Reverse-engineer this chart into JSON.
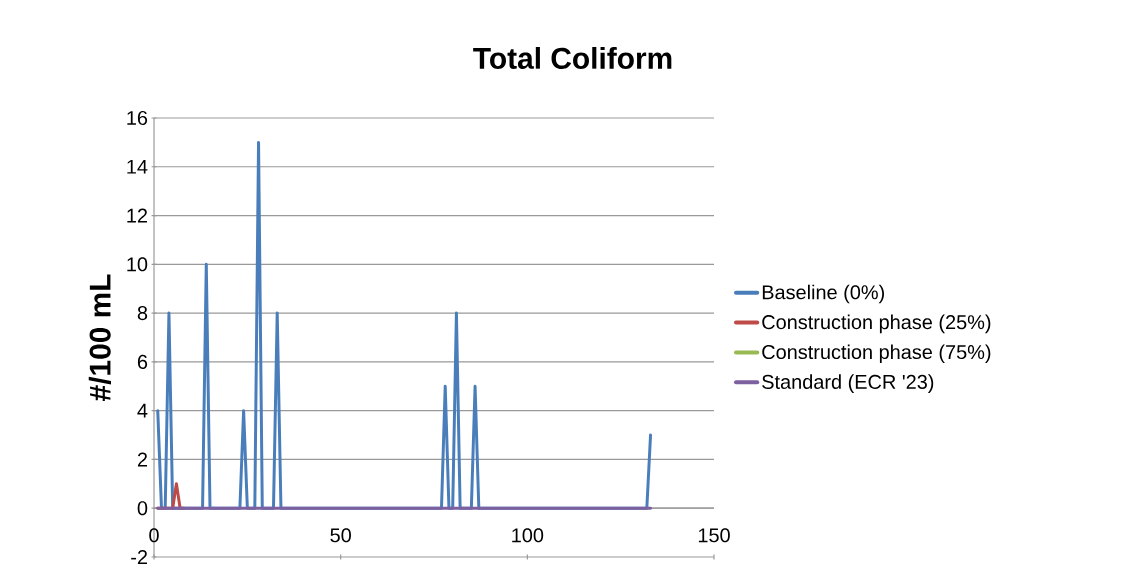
{
  "chart_data": {
    "type": "line",
    "title": "Total Coliform",
    "ylabel": "#/100 mL",
    "xlim": [
      0,
      150
    ],
    "xticks": [
      0,
      50,
      100,
      150
    ],
    "ylim": [
      -2,
      16
    ],
    "yticks": [
      -2,
      0,
      2,
      4,
      6,
      8,
      10,
      12,
      14,
      16
    ],
    "grid": "y",
    "legend": "right",
    "line_style": "solid",
    "series": [
      {
        "name": "Baseline (0%)",
        "color": "#4a7ebb",
        "x": [
          1,
          2,
          3,
          4,
          5,
          13,
          14,
          15,
          23,
          24,
          25,
          27,
          28,
          29,
          32,
          33,
          34,
          77,
          78,
          79,
          80,
          81,
          82,
          85,
          86,
          87,
          132,
          133
        ],
        "values": [
          4,
          0,
          0,
          8,
          0,
          0,
          10,
          0,
          0,
          4,
          0,
          0,
          15,
          0,
          0,
          8,
          0,
          0,
          5,
          0,
          0,
          8,
          0,
          0,
          5,
          0,
          0,
          3
        ]
      },
      {
        "name": "Construction phase (25%)",
        "color": "#be4b48",
        "x": [
          1,
          5,
          6,
          7,
          8
        ],
        "values": [
          0,
          0,
          1,
          0,
          0
        ]
      },
      {
        "name": "Construction phase (75%)",
        "color": "#98b954",
        "values": [
          null
        ]
      },
      {
        "name": "Standard (ECR '23)",
        "color": "#7d60a0",
        "x": [
          1,
          133
        ],
        "values": [
          0,
          0
        ]
      }
    ]
  }
}
